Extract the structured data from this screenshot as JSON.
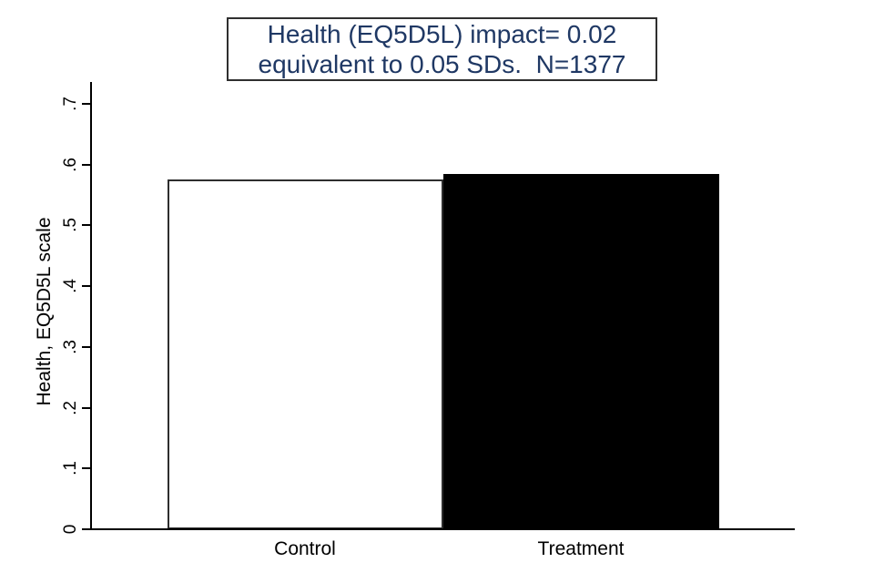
{
  "title": {
    "line1": "Health (EQ5D5L) impact= 0.02",
    "line2": "equivalent to 0.05 SDs.  N=1377",
    "color": "#1f3864",
    "border_color": "#2f2f2f"
  },
  "chart_data": {
    "type": "bar",
    "categories": [
      "Control",
      "Treatment"
    ],
    "values": [
      0.575,
      0.585
    ],
    "bar_styles": [
      {
        "fill": "#ffffff",
        "border": "#2e2e2e"
      },
      {
        "fill": "#000000",
        "border": "#000000"
      }
    ],
    "title": "Health (EQ5D5L) impact= 0.02 equivalent to 0.05 SDs.  N=1377",
    "xlabel": "",
    "ylabel": "Health, EQ5D5L scale",
    "ylim": [
      0,
      0.7
    ],
    "yticks": [
      0,
      0.1,
      0.2,
      0.3,
      0.4,
      0.5,
      0.6,
      0.7
    ],
    "ytick_labels": [
      "0",
      ".1",
      ".2",
      ".3",
      ".4",
      ".5",
      ".6",
      ".7"
    ],
    "grid": false,
    "legend": "none"
  }
}
